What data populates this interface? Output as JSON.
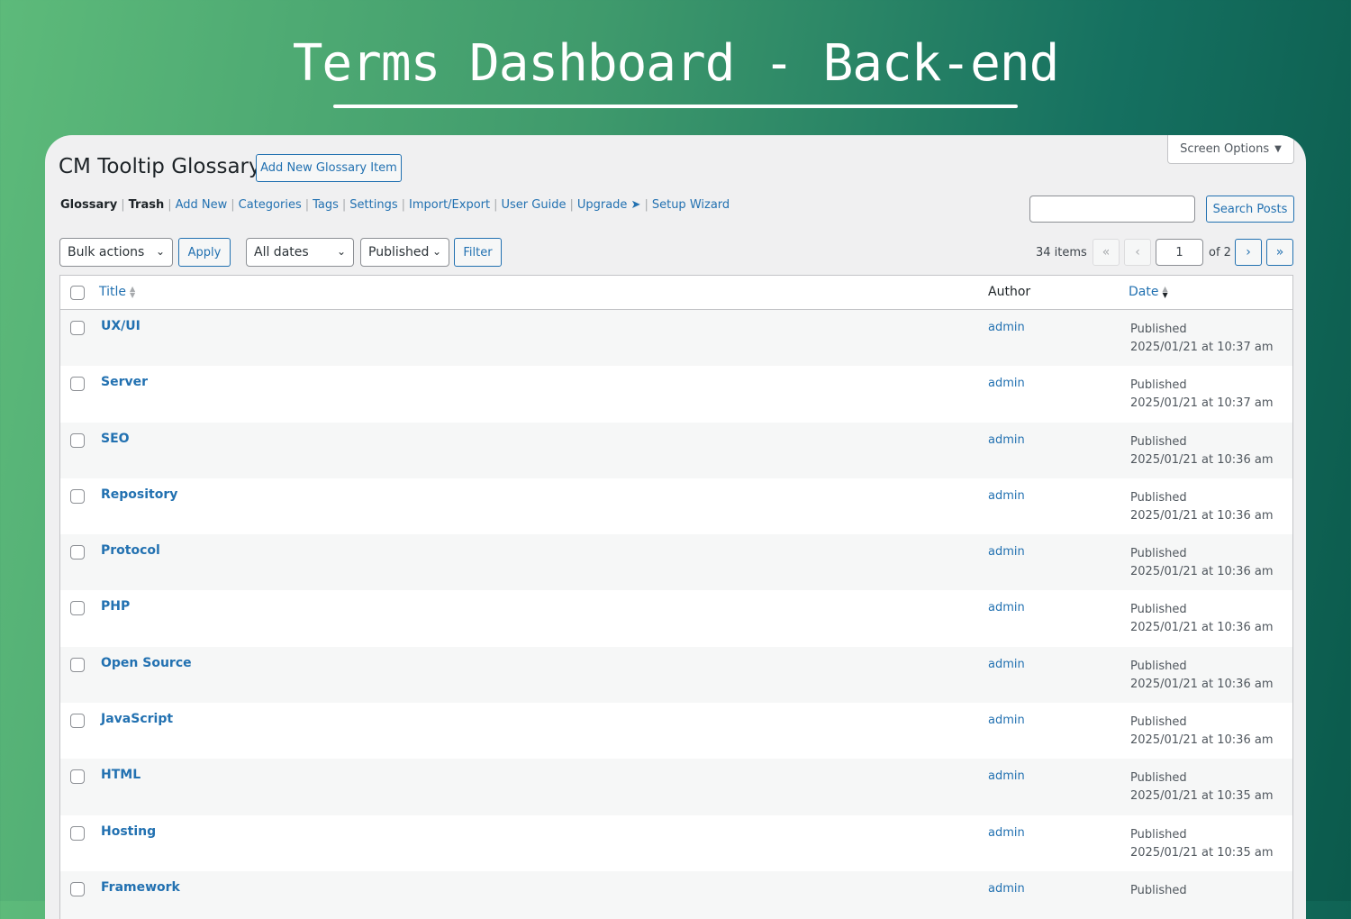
{
  "hero": {
    "title": "Terms Dashboard - Back-end"
  },
  "header": {
    "title": "CM Tooltip Glossary",
    "add_new": "Add New Glossary Item",
    "screen_options": "Screen Options"
  },
  "nav": [
    {
      "label": "Glossary",
      "current": true
    },
    {
      "label": "Trash",
      "bold": true
    },
    {
      "label": "Add New"
    },
    {
      "label": "Categories"
    },
    {
      "label": "Tags"
    },
    {
      "label": "Settings"
    },
    {
      "label": "Import/Export"
    },
    {
      "label": "User Guide"
    },
    {
      "label": "Upgrade ➤"
    },
    {
      "label": "Setup Wizard"
    }
  ],
  "search": {
    "value": "",
    "button": "Search Posts"
  },
  "toolbar": {
    "bulk": "Bulk actions",
    "apply": "Apply",
    "dates": "All dates",
    "status": "Published",
    "filter": "Filter"
  },
  "pagination": {
    "items": "34 items",
    "first": "«",
    "prev": "‹",
    "page": "1",
    "of": "of 2",
    "next": "›",
    "last": "»"
  },
  "columns": {
    "title": "Title",
    "author": "Author",
    "date": "Date"
  },
  "rows": [
    {
      "title": "UX/UI",
      "author": "admin",
      "status": "Published",
      "date": "2025/01/21 at 10:37 am"
    },
    {
      "title": "Server",
      "author": "admin",
      "status": "Published",
      "date": "2025/01/21 at 10:37 am"
    },
    {
      "title": "SEO",
      "author": "admin",
      "status": "Published",
      "date": "2025/01/21 at 10:36 am"
    },
    {
      "title": "Repository",
      "author": "admin",
      "status": "Published",
      "date": "2025/01/21 at 10:36 am"
    },
    {
      "title": "Protocol",
      "author": "admin",
      "status": "Published",
      "date": "2025/01/21 at 10:36 am"
    },
    {
      "title": "PHP",
      "author": "admin",
      "status": "Published",
      "date": "2025/01/21 at 10:36 am"
    },
    {
      "title": "Open Source",
      "author": "admin",
      "status": "Published",
      "date": "2025/01/21 at 10:36 am"
    },
    {
      "title": "JavaScript",
      "author": "admin",
      "status": "Published",
      "date": "2025/01/21 at 10:36 am"
    },
    {
      "title": "HTML",
      "author": "admin",
      "status": "Published",
      "date": "2025/01/21 at 10:35 am"
    },
    {
      "title": "Hosting",
      "author": "admin",
      "status": "Published",
      "date": "2025/01/21 at 10:35 am"
    },
    {
      "title": "Framework",
      "author": "admin",
      "status": "Published",
      "date": ""
    }
  ],
  "colors": {
    "link": "#2271b1",
    "panel": "#f0f0f1"
  }
}
